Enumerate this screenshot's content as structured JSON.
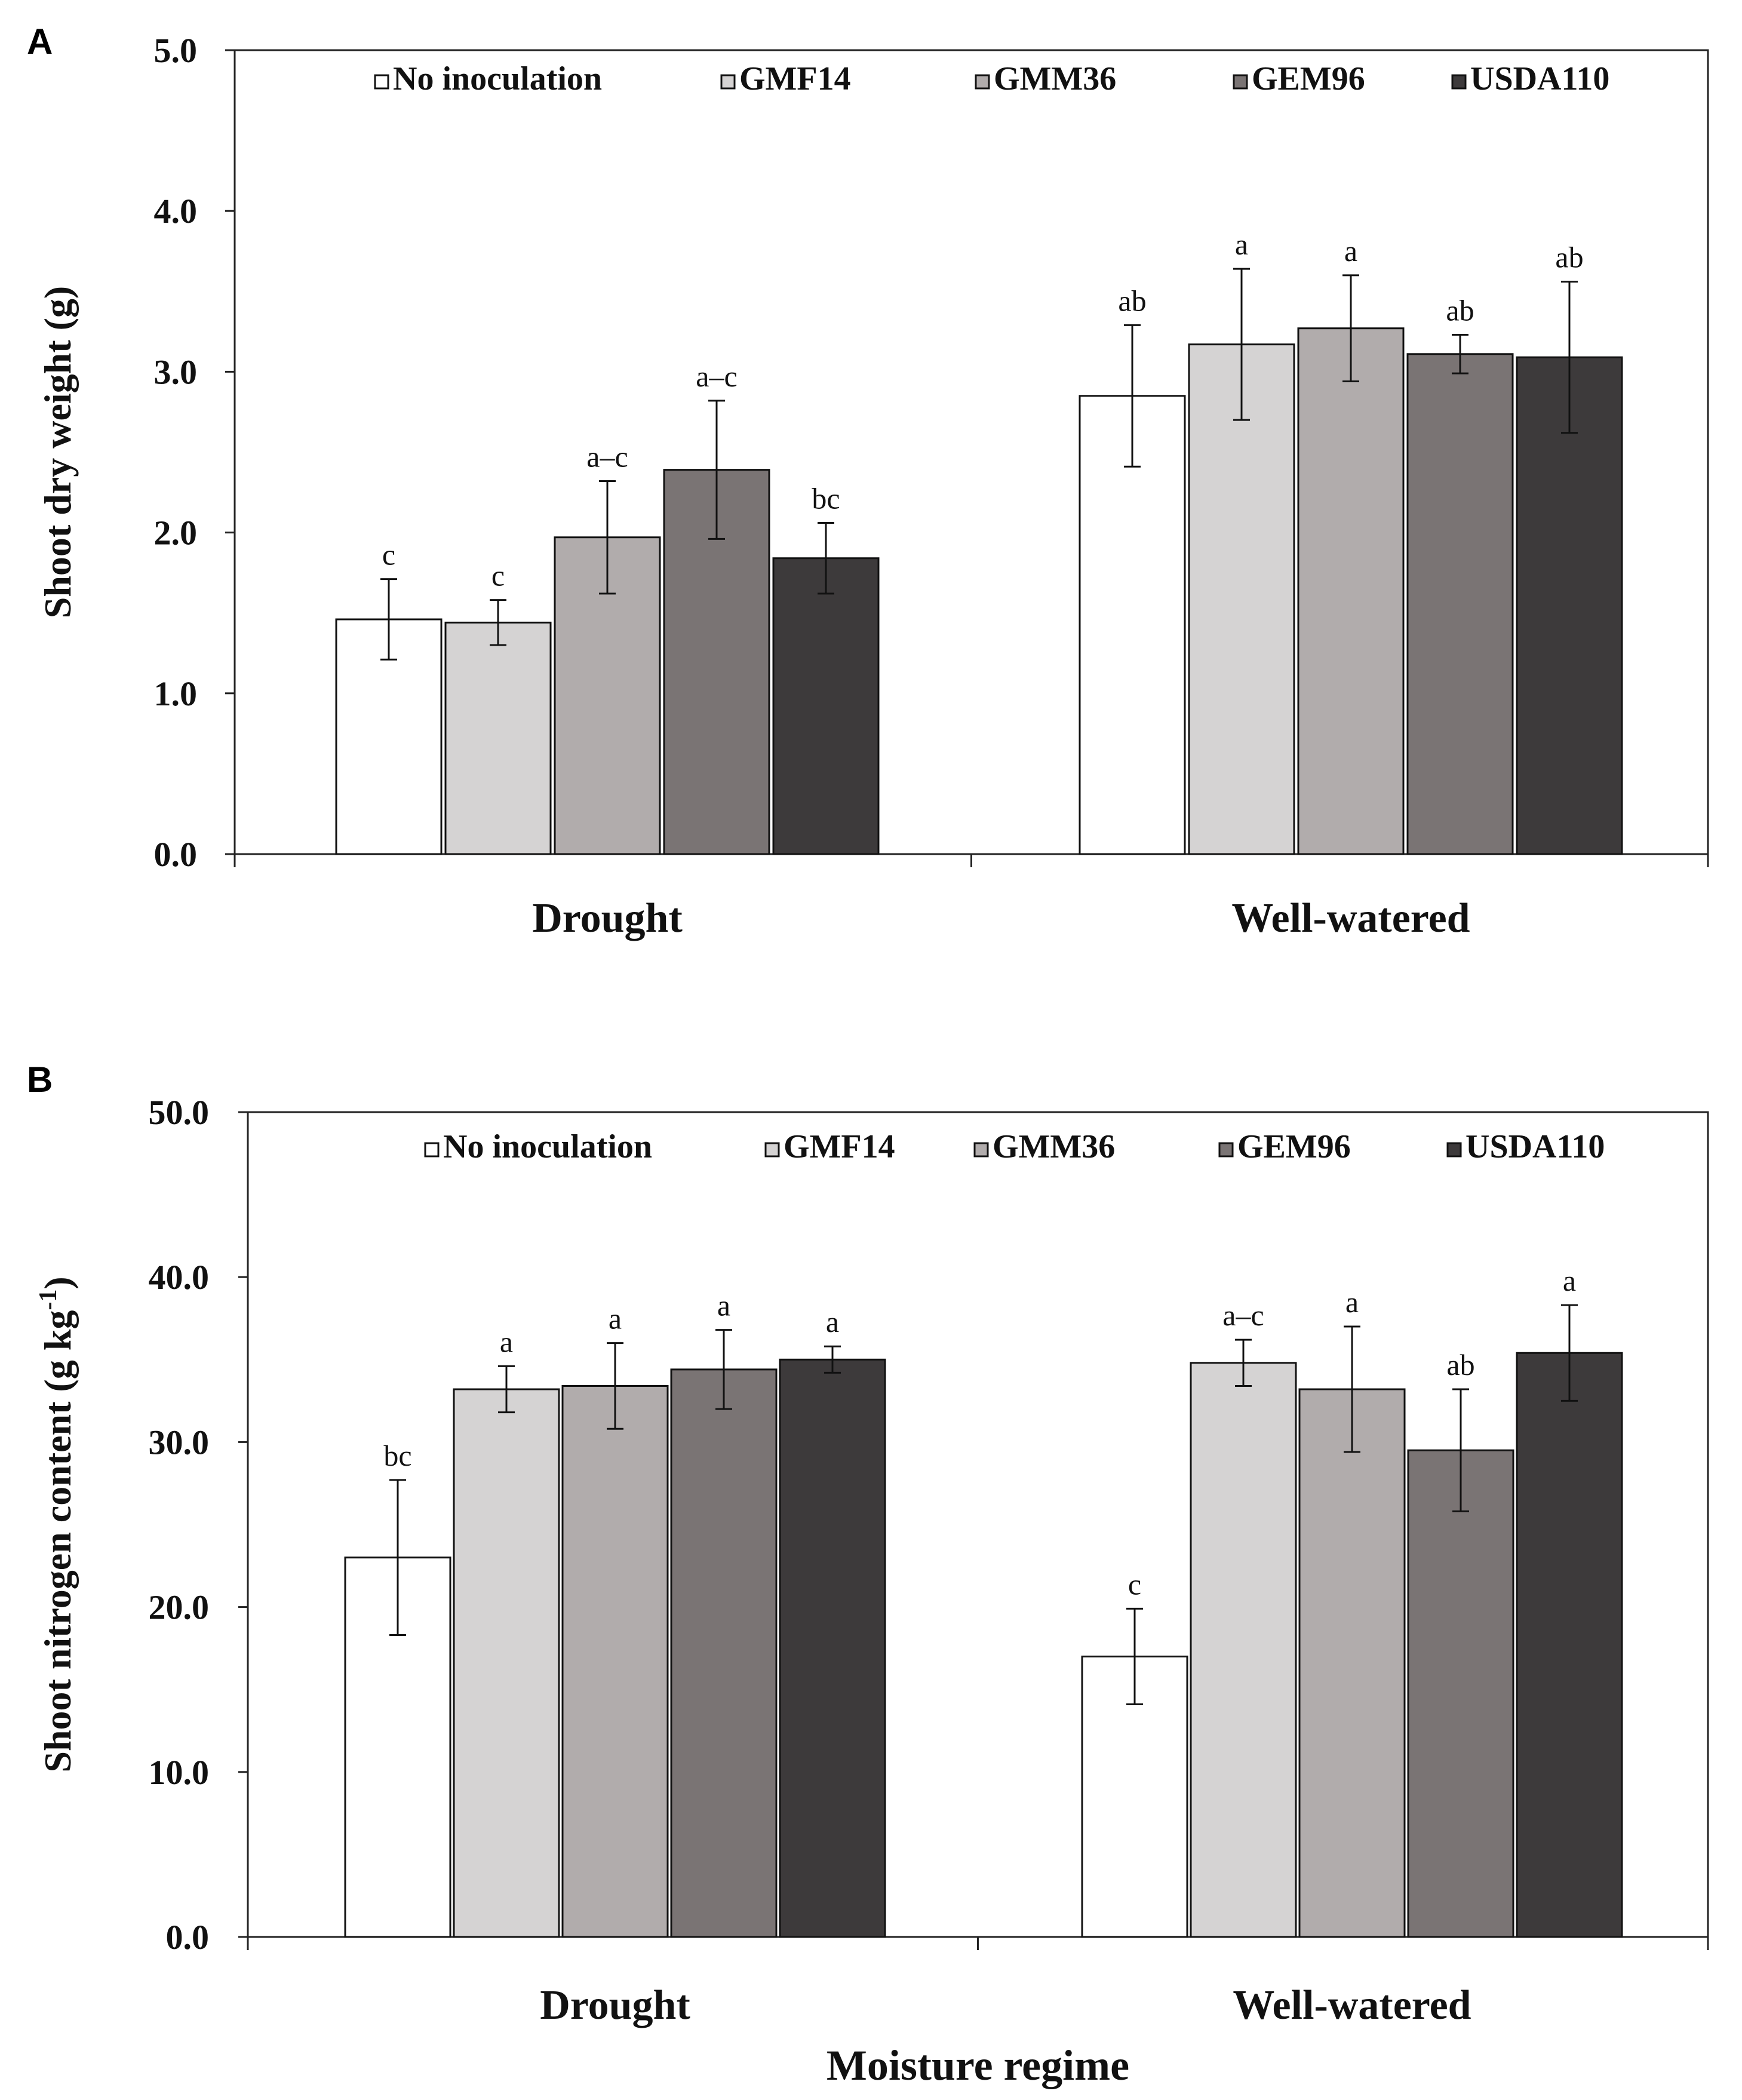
{
  "figure_labels": [
    "A",
    "B"
  ],
  "colors": {
    "No inoculation": "#ffffff",
    "GMF14": "#d5d3d3",
    "GMM36": "#b1acac",
    "GEM96": "#7a7474",
    "USDA110": "#3d3a3b"
  },
  "chart_data": [
    {
      "type": "bar",
      "panel": "A",
      "title": "",
      "xlabel": "",
      "ylabel": "Shoot dry weight (g)",
      "ylim": [
        0,
        5
      ],
      "yticks": [
        "0.0",
        "1.0",
        "2.0",
        "3.0",
        "4.0",
        "5.0"
      ],
      "categories": [
        "Drought",
        "Well-watered"
      ],
      "legend_position": "top",
      "series": [
        {
          "name": "No inoculation",
          "values": [
            1.46,
            2.85
          ],
          "errors": [
            0.25,
            0.44
          ],
          "letters": [
            "c",
            "ab"
          ]
        },
        {
          "name": "GMF14",
          "values": [
            1.44,
            3.17
          ],
          "errors": [
            0.14,
            0.47
          ],
          "letters": [
            "c",
            "a"
          ]
        },
        {
          "name": "GMM36",
          "values": [
            1.97,
            3.27
          ],
          "errors": [
            0.35,
            0.33
          ],
          "letters": [
            "a–c",
            "a"
          ]
        },
        {
          "name": "GEM96",
          "values": [
            2.39,
            3.11
          ],
          "errors": [
            0.43,
            0.12
          ],
          "letters": [
            "a–c",
            "ab"
          ]
        },
        {
          "name": "USDA110",
          "values": [
            1.84,
            3.09
          ],
          "errors": [
            0.22,
            0.47
          ],
          "letters": [
            "bc",
            "ab"
          ]
        }
      ]
    },
    {
      "type": "bar",
      "panel": "B",
      "title": "",
      "xlabel": "Moisture regime",
      "ylabel": "Shoot nitrogen content (g kg",
      "ylabel_superscript": "-1",
      "ylabel_suffix": ")",
      "ylim": [
        0,
        50
      ],
      "yticks": [
        "0.0",
        "10.0",
        "20.0",
        "30.0",
        "40.0",
        "50.0"
      ],
      "categories": [
        "Drought",
        "Well-watered"
      ],
      "legend_position": "top",
      "series": [
        {
          "name": "No inoculation",
          "values": [
            23.0,
            17.0
          ],
          "errors": [
            4.7,
            2.9
          ],
          "letters": [
            "bc",
            "c"
          ]
        },
        {
          "name": "GMF14",
          "values": [
            33.2,
            34.8
          ],
          "errors": [
            1.4,
            1.4
          ],
          "letters": [
            "a",
            "a–c"
          ]
        },
        {
          "name": "GMM36",
          "values": [
            33.4,
            33.2
          ],
          "errors": [
            2.6,
            3.8
          ],
          "letters": [
            "a",
            "a"
          ]
        },
        {
          "name": "GEM96",
          "values": [
            34.4,
            29.5
          ],
          "errors": [
            2.4,
            3.7
          ],
          "letters": [
            "a",
            "ab"
          ]
        },
        {
          "name": "USDA110",
          "values": [
            35.0,
            35.4
          ],
          "errors": [
            0.8,
            2.9
          ],
          "letters": [
            "a",
            "a"
          ]
        }
      ]
    }
  ]
}
